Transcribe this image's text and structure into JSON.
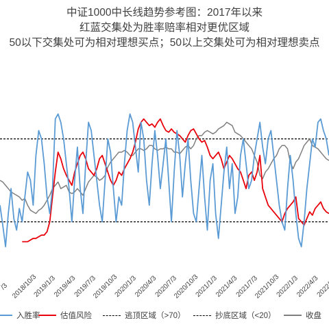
{
  "title": {
    "line1": "中证1000中长线趋势参考图：2017年以来",
    "line2": "红蓝交集处为胜率赔率相对更优区域",
    "line3": "50以下交集处可为相对理想买点；50以上交集处可为相对理想卖点"
  },
  "legend": {
    "items": [
      {
        "label": "入胜率",
        "color": "#5b9bd5",
        "style": "solid"
      },
      {
        "label": "估值风险",
        "color": "#e8000b",
        "style": "solid"
      },
      {
        "label": "逃顶区域（>70）",
        "color": "#000000",
        "style": "dashed"
      },
      {
        "label": "抄底区域（<20）",
        "color": "#000000",
        "style": "dashed"
      },
      {
        "label": "收盘",
        "color": "#7f7f7f",
        "style": "solid"
      }
    ]
  },
  "chart_data": {
    "type": "line",
    "ylim": [
      0,
      100
    ],
    "x_tick_labels": [
      "/3",
      "2018/10/3",
      "2019/1/3",
      "2019/4/3",
      "2019/7/3",
      "2019/10/3",
      "2020/1/3",
      "2020/4/3",
      "2020/7/3",
      "2020/10/3",
      "2021/1/3",
      "2021/4/3",
      "2021/7/3",
      "2021/10/3",
      "2022/1/3",
      "2022/4/3",
      "2022/7/3"
    ],
    "reference_lines": [
      {
        "name": "逃顶区域（>70）",
        "value": 70
      },
      {
        "name": "抄底区域（<20）",
        "value": 20
      }
    ],
    "series": [
      {
        "name": "估值风险",
        "color": "#e8000b",
        "values": [
          null,
          null,
          null,
          null,
          null,
          null,
          null,
          null,
          8,
          8,
          8,
          9,
          10,
          10,
          11,
          12,
          12,
          14,
          20,
          35,
          50,
          62,
          58,
          52,
          48,
          45,
          42,
          50,
          55,
          60,
          62,
          58,
          52,
          50,
          48,
          52,
          58,
          60,
          55,
          50,
          45,
          42,
          45,
          50,
          48,
          52,
          55,
          58,
          62,
          68,
          76,
          80,
          82,
          80,
          78,
          79,
          77,
          80,
          82,
          78,
          75,
          74,
          76,
          74,
          73,
          72,
          70,
          68,
          72,
          75,
          76,
          73,
          70,
          68,
          69,
          65,
          60,
          58,
          60,
          62,
          58,
          52,
          56,
          60,
          58,
          55,
          52,
          50,
          45,
          40,
          48,
          50,
          45,
          50,
          60,
          40,
          35,
          30,
          28,
          26,
          24,
          22,
          20,
          25,
          28,
          30,
          32,
          35,
          22,
          20,
          18,
          22,
          26,
          24,
          28,
          30,
          32,
          28,
          26,
          25
        ]
      },
      {
        "name": "入胜率",
        "color": "#5b9bd5",
        "values": [
          30,
          18,
          5,
          25,
          40,
          22,
          15,
          28,
          20,
          35,
          50,
          45,
          30,
          60,
          75,
          70,
          55,
          35,
          25,
          40,
          82,
          85,
          80,
          70,
          55,
          40,
          20,
          45,
          65,
          40,
          25,
          55,
          80,
          75,
          60,
          45,
          30,
          20,
          45,
          70,
          62,
          40,
          20,
          35,
          30,
          55,
          75,
          85,
          80,
          65,
          50,
          80,
          70,
          45,
          30,
          55,
          75,
          60,
          40,
          55,
          70,
          45,
          20,
          50,
          75,
          60,
          35,
          55,
          70,
          45,
          25,
          20,
          40,
          60,
          35,
          15,
          45,
          55,
          25,
          10,
          30,
          50,
          65,
          40,
          55,
          25,
          35,
          60,
          70,
          55,
          40,
          45,
          60,
          70,
          80,
          65,
          55,
          70,
          75,
          60,
          45,
          30,
          20,
          15,
          40,
          60,
          45,
          25,
          10,
          5,
          20,
          40,
          55,
          70,
          65,
          80,
          82,
          75,
          70,
          60
        ]
      },
      {
        "name": "收盘",
        "color": "#7f7f7f",
        "values": [
          45,
          44,
          42,
          40,
          38,
          37,
          36,
          35,
          33,
          34,
          30,
          27,
          26,
          25,
          27,
          28,
          30,
          33,
          36,
          40,
          42,
          44,
          40,
          41,
          42,
          38,
          37,
          38,
          40,
          38,
          36,
          40,
          44,
          46,
          48,
          47,
          45,
          46,
          48,
          53,
          56,
          58,
          60,
          62,
          62,
          63,
          62,
          60,
          60,
          62,
          64,
          64,
          63,
          64,
          66,
          66,
          64,
          63,
          64,
          64,
          65,
          64,
          64,
          62,
          62,
          61,
          63,
          65,
          66,
          64,
          66,
          70,
          72,
          72,
          74,
          75,
          74,
          73,
          74,
          76,
          77,
          78,
          80,
          79,
          78,
          74,
          73,
          72,
          70,
          68,
          66,
          64,
          60,
          56,
          48,
          46,
          50,
          52,
          55,
          58,
          60,
          64,
          66,
          66,
          64,
          56,
          52,
          56,
          58,
          62,
          66,
          68,
          70,
          66,
          65,
          64,
          62,
          60,
          58,
          57
        ]
      }
    ]
  }
}
